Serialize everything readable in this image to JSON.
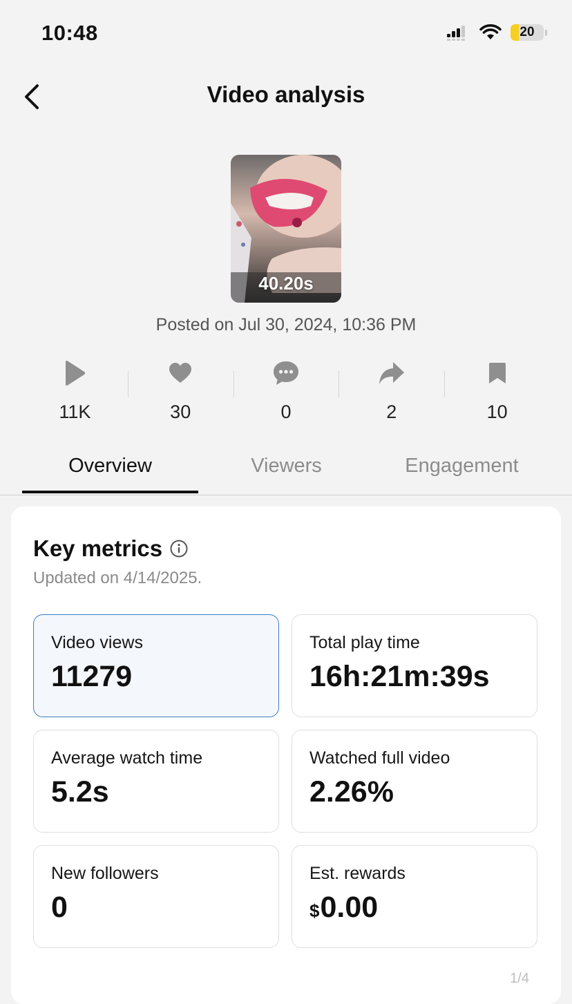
{
  "status_bar": {
    "time": "10:48",
    "battery_level": "20"
  },
  "header": {
    "title": "Video analysis"
  },
  "video": {
    "duration": "40.20s",
    "posted": "Posted on Jul 30, 2024, 10:36 PM"
  },
  "stats": [
    {
      "icon": "play-icon",
      "value": "11K"
    },
    {
      "icon": "heart-icon",
      "value": "30"
    },
    {
      "icon": "comment-icon",
      "value": "0"
    },
    {
      "icon": "share-icon",
      "value": "2"
    },
    {
      "icon": "bookmark-icon",
      "value": "10"
    }
  ],
  "tabs": [
    {
      "label": "Overview",
      "active": true
    },
    {
      "label": "Viewers",
      "active": false
    },
    {
      "label": "Engagement",
      "active": false
    }
  ],
  "key_metrics": {
    "title": "Key metrics",
    "updated": "Updated on 4/14/2025.",
    "cards": [
      {
        "label": "Video views",
        "value": "11279"
      },
      {
        "label": "Total play time",
        "value": "16h:21m:39s"
      },
      {
        "label": "Average watch time",
        "value": "5.2s"
      },
      {
        "label": "Watched full video",
        "value": "2.26%"
      },
      {
        "label": "New followers",
        "value": "0"
      },
      {
        "label": "Est. rewards",
        "currency": "$",
        "value": "0.00"
      }
    ],
    "footer_partial": "1/4"
  },
  "colors": {
    "background": "#f3f3f3",
    "selected_border": "#3a7cc0",
    "selected_fill": "#f4f8fc",
    "battery_fill": "#f7cf1e"
  }
}
